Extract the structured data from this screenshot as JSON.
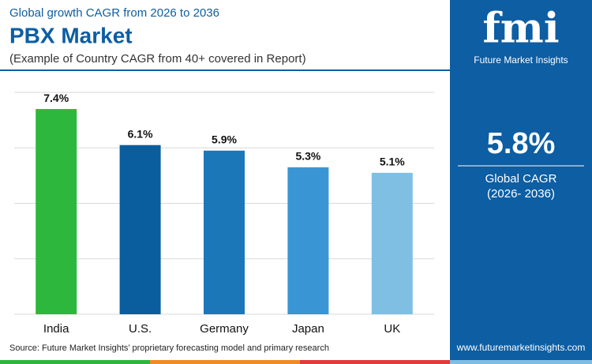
{
  "chart_data": {
    "type": "bar",
    "kicker": "Global growth CAGR from 2026 to 2036",
    "title": "PBX Market",
    "subtitle": "(Example of Country CAGR from 40+ covered in Report)",
    "categories": [
      "India",
      "U.S.",
      "Germany",
      "Japan",
      "UK"
    ],
    "values": [
      7.4,
      6.1,
      5.9,
      5.3,
      5.1
    ],
    "value_labels": [
      "7.4%",
      "6.1%",
      "5.9%",
      "5.3%",
      "5.1%"
    ],
    "colors": [
      "#2db83d",
      "#0b5e9e",
      "#1c77b9",
      "#3a95d5",
      "#80bfe4"
    ],
    "ylim": [
      0,
      8
    ],
    "yticks": [
      0,
      2,
      4,
      6,
      8
    ],
    "grid": true,
    "source": "Source: Future Market Insights’ proprietary forecasting model and primary research"
  },
  "panel": {
    "logo": "fmi",
    "brand": "Future Market Insights",
    "cagr": "5.8%",
    "cagr_label": "Global CAGR",
    "period": "(2026- 2036)",
    "url": "www.futuremarketinsights.com"
  }
}
